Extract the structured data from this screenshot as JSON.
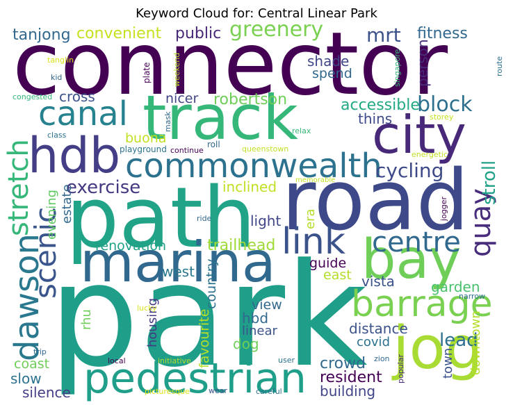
{
  "title": "Keyword Cloud for: Central Linear Park",
  "words": [
    "connector",
    "park",
    "path",
    "road",
    "marina",
    "track",
    "city",
    "hdb",
    "commonwealth",
    "canal",
    "bay",
    "jog",
    "barrage",
    "pedestrian",
    "link",
    "centre",
    "dawson",
    "scenic",
    "stretch",
    "quay",
    "cycling",
    "stroll",
    "block",
    "accessible",
    "thins",
    "mrt",
    "fitness",
    "greenery",
    "public",
    "convenient",
    "tanjong",
    "shade",
    "spend",
    "person",
    "robertson",
    "nicer",
    "cross",
    "buona",
    "exercise",
    "inclined",
    "estate",
    "evening",
    "light",
    "era",
    "renovation",
    "trailhead",
    "west",
    "guide",
    "east",
    "vista",
    "garden",
    "hbd",
    "view",
    "linear",
    "housing",
    "favourite",
    "country",
    "rhu",
    "dog",
    "distance",
    "lead",
    "covid",
    "town",
    "downtown",
    "crowd",
    "resident",
    "building",
    "coast",
    "slow",
    "silence",
    "tanglin",
    "kid",
    "congested",
    "class",
    "plate",
    "weekend",
    "mask",
    "roll",
    "playground",
    "continue",
    "queenstown",
    "relax",
    "singapore",
    "route",
    "storey",
    "energetic",
    "memorable",
    "jogger",
    "ride",
    "lucky",
    "narrow",
    "trip",
    "local",
    "initiative",
    "user",
    "zion",
    "popular",
    "picturesque",
    "wear",
    "careful"
  ]
}
